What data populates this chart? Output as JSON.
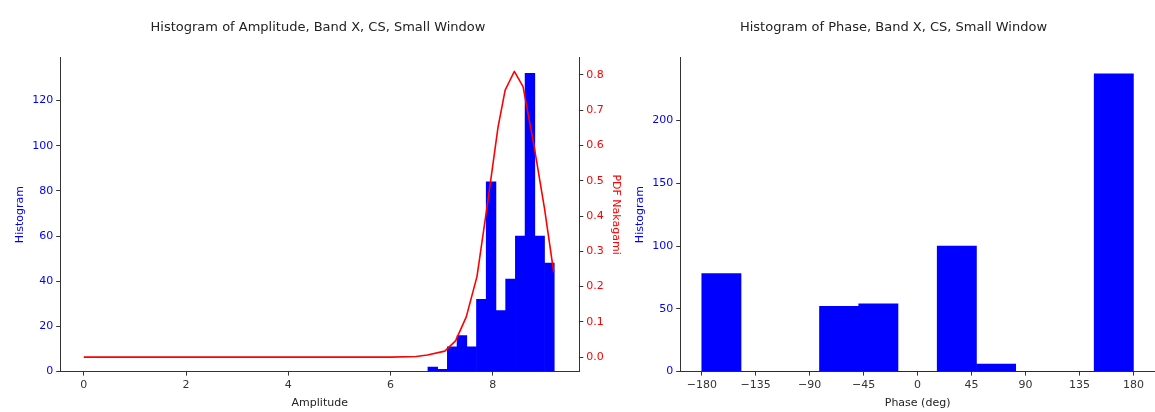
{
  "chart_data": [
    {
      "type": "histogram",
      "title": "Histogram of Amplitude, Band X, CS, Small Window",
      "xlabel": "Amplitude",
      "ylabel": "Histogram",
      "y2label": "PDF Nakagami",
      "color": "#0000ff",
      "bins": [
        6.73,
        6.92,
        7.11,
        7.3,
        7.49,
        7.68,
        7.87,
        8.06,
        8.25,
        8.44,
        8.63,
        8.82,
        9.01,
        9.2
      ],
      "values": [
        2,
        1,
        11,
        16,
        11,
        32,
        84,
        27,
        41,
        60,
        132,
        60,
        48
      ],
      "series": [
        {
          "type": "line",
          "axis": "y2",
          "color": "#ff0000",
          "x": [
            0,
            2,
            4,
            6,
            6.5,
            6.72,
            7.06,
            7.27,
            7.48,
            7.69,
            7.9,
            8.1,
            8.24,
            8.42,
            8.59,
            8.8,
            9.01,
            9.19
          ],
          "values": [
            0,
            0,
            0,
            0,
            0.002,
            0.006,
            0.017,
            0.046,
            0.114,
            0.229,
            0.44,
            0.651,
            0.757,
            0.81,
            0.767,
            0.603,
            0.421,
            0.24
          ]
        }
      ],
      "xlim": [
        -0.46,
        9.69
      ],
      "xticks": [
        0,
        2,
        4,
        6,
        8
      ],
      "ylim": [
        0,
        139
      ],
      "yticks": [
        0,
        20,
        40,
        60,
        80,
        100,
        120
      ],
      "y2lim": [
        -0.041,
        0.849
      ],
      "y2ticks": [
        {
          "value": 0,
          "label": "0.0"
        },
        0.1,
        0.2,
        0.3,
        0.4,
        0.5,
        0.6,
        0.7,
        0.8
      ],
      "grid": false,
      "legend": false
    },
    {
      "type": "histogram",
      "title": "Histogram of Phase, Band X, CS, Small Window",
      "xlabel": "Phase (deg)",
      "ylabel": "Histogram",
      "color": "#0000ff",
      "bins": [
        -180,
        -147.27,
        -114.55,
        -81.82,
        -49.09,
        -16.36,
        16.36,
        49.09,
        81.82,
        114.55,
        147.27,
        180
      ],
      "values": [
        78,
        0,
        0,
        52,
        54,
        0,
        100,
        6,
        0,
        0,
        237
      ],
      "xlim": [
        -198,
        198
      ],
      "xticks": [
        {
          "value": -180,
          "label": "−180"
        },
        {
          "value": -135,
          "label": "−135"
        },
        {
          "value": -90,
          "label": "−90"
        },
        {
          "value": -45,
          "label": "−45"
        },
        0,
        45,
        90,
        135,
        180
      ],
      "ylim": [
        0,
        250
      ],
      "yticks": [
        0,
        50,
        100,
        150,
        200
      ],
      "grid": false,
      "legend": false
    }
  ]
}
